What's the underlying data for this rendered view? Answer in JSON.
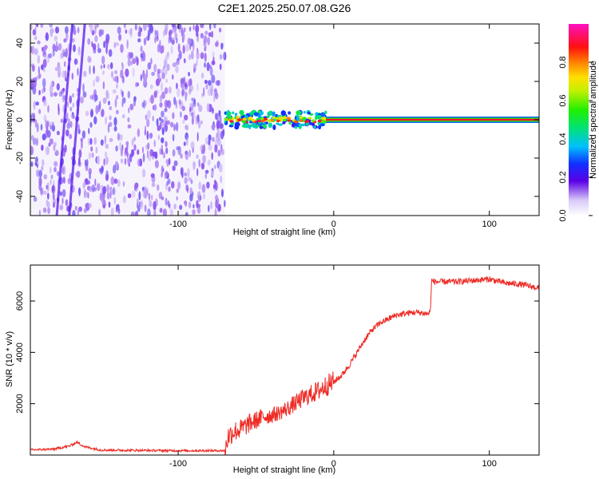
{
  "figure": {
    "title": "C2E1.2025.250.07.08.G26"
  },
  "chart_data": [
    {
      "type": "heatmap",
      "title": "C2E1.2025.250.07.08.G26",
      "xlabel": "Height of straight line (km)",
      "ylabel": "Frequency (Hz)",
      "xlim": [
        -195,
        132
      ],
      "ylim": [
        -50,
        50
      ],
      "x_ticks": [
        -100,
        0,
        100
      ],
      "x_tick_labels": [
        "-100",
        "0",
        "100"
      ],
      "y_ticks": [
        -40,
        -20,
        0,
        20,
        40
      ],
      "y_tick_labels": [
        "-40",
        "-20",
        "0",
        "20",
        "40"
      ],
      "colorbar": {
        "label": "Normalized spectral amplitude",
        "range": [
          0,
          1
        ],
        "ticks": [
          0,
          0.2,
          0.4,
          0.6,
          0.8
        ],
        "tick_labels": [
          "0.0",
          "0.2",
          "0.4",
          "0.6",
          "0.8"
        ]
      },
      "regions": [
        {
          "x": [
            -195,
            -70
          ],
          "description": "broadband noise, amplitude ~0.1-0.3 across all frequencies"
        },
        {
          "x": [
            -70,
            -5
          ],
          "description": "signal at ~0 Hz, amplitude 0.3-1.0 with spread of ~+/-4 Hz"
        },
        {
          "x": [
            -5,
            132
          ],
          "description": "narrow line at 0 Hz, amplitude ~1.0"
        }
      ],
      "signal_line_frequency": 0
    },
    {
      "type": "line",
      "xlabel": "Height of straight line (km)",
      "ylabel": "SNR (10 * v/v)",
      "xlim": [
        -195,
        132
      ],
      "ylim": [
        0,
        7400
      ],
      "x_ticks": [
        -100,
        0,
        100
      ],
      "x_tick_labels": [
        "-100",
        "0",
        "100"
      ],
      "y_ticks": [
        2000,
        4000,
        6000
      ],
      "y_tick_labels": [
        "2000",
        "4000",
        "6000"
      ],
      "color": "#ee2a24",
      "series": [
        {
          "x": [
            -195,
            -180,
            -170,
            -165,
            -160,
            -150,
            -140,
            -120,
            -100,
            -80,
            -70,
            -68,
            -65,
            -60,
            -55,
            -50,
            -45,
            -40,
            -35,
            -30,
            -25,
            -20,
            -15,
            -10,
            -5,
            0,
            5,
            10,
            15,
            20,
            25,
            30,
            35,
            40,
            45,
            50,
            55,
            60,
            62,
            63,
            65,
            70,
            80,
            90,
            100,
            110,
            120,
            132
          ],
          "y": [
            200,
            230,
            350,
            500,
            320,
            200,
            190,
            180,
            170,
            170,
            170,
            700,
            900,
            1000,
            1200,
            1350,
            1500,
            1550,
            1650,
            1800,
            2000,
            2200,
            2350,
            2500,
            2700,
            2850,
            3100,
            3500,
            4000,
            4500,
            4900,
            5150,
            5300,
            5450,
            5500,
            5550,
            5550,
            5500,
            5550,
            6800,
            6750,
            6750,
            6750,
            6800,
            6850,
            6700,
            6650,
            6500
          ]
        }
      ]
    }
  ]
}
